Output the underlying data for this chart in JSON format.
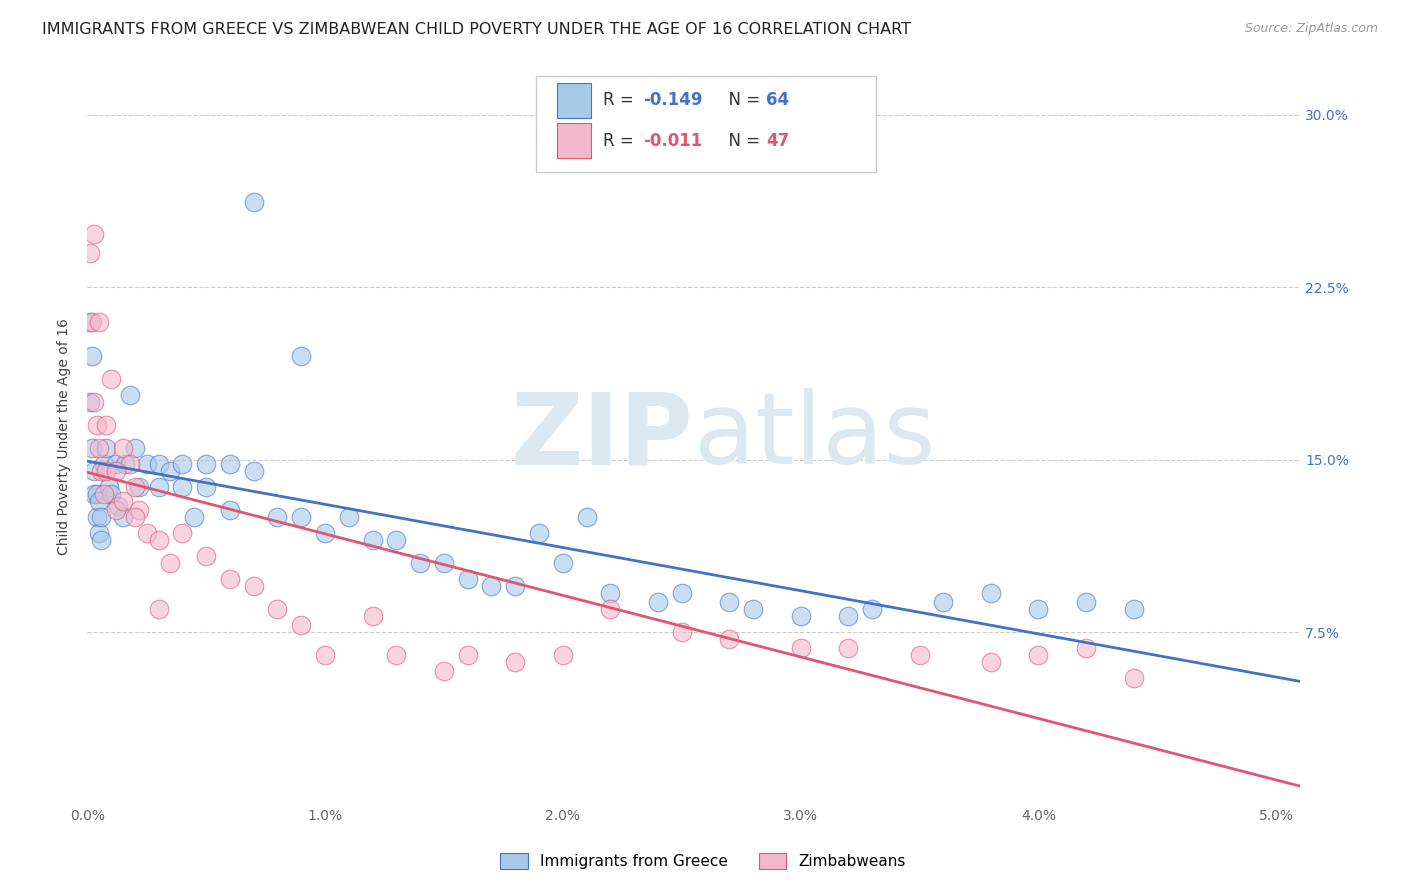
{
  "title": "IMMIGRANTS FROM GREECE VS ZIMBABWEAN CHILD POVERTY UNDER THE AGE OF 16 CORRELATION CHART",
  "source": "Source: ZipAtlas.com",
  "ylabel": "Child Poverty Under the Age of 16",
  "legend_entries": [
    {
      "label": "Immigrants from Greece",
      "color": "#a8c8e8",
      "R": "-0.149",
      "N": "64"
    },
    {
      "label": "Zimbabweans",
      "color": "#f4b8cc",
      "R": "-0.011",
      "N": "47"
    }
  ],
  "blue_scatter_x": [
    0.0001,
    0.0001,
    0.0002,
    0.0002,
    0.0003,
    0.0003,
    0.0004,
    0.0004,
    0.0005,
    0.0005,
    0.0006,
    0.0006,
    0.0007,
    0.0008,
    0.0009,
    0.001,
    0.0012,
    0.0013,
    0.0015,
    0.0016,
    0.0018,
    0.002,
    0.0022,
    0.0025,
    0.003,
    0.003,
    0.0035,
    0.004,
    0.004,
    0.0045,
    0.005,
    0.005,
    0.006,
    0.006,
    0.007,
    0.008,
    0.009,
    0.01,
    0.011,
    0.012,
    0.013,
    0.014,
    0.015,
    0.016,
    0.017,
    0.018,
    0.02,
    0.022,
    0.024,
    0.025,
    0.027,
    0.028,
    0.03,
    0.032,
    0.033,
    0.036,
    0.038,
    0.04,
    0.042,
    0.044,
    0.007,
    0.009,
    0.019,
    0.021
  ],
  "blue_scatter_y": [
    0.21,
    0.175,
    0.195,
    0.155,
    0.145,
    0.135,
    0.135,
    0.125,
    0.132,
    0.118,
    0.125,
    0.115,
    0.148,
    0.155,
    0.138,
    0.135,
    0.148,
    0.13,
    0.125,
    0.148,
    0.178,
    0.155,
    0.138,
    0.148,
    0.148,
    0.138,
    0.145,
    0.148,
    0.138,
    0.125,
    0.148,
    0.138,
    0.148,
    0.128,
    0.145,
    0.125,
    0.125,
    0.118,
    0.125,
    0.115,
    0.115,
    0.105,
    0.105,
    0.098,
    0.095,
    0.095,
    0.105,
    0.092,
    0.088,
    0.092,
    0.088,
    0.085,
    0.082,
    0.082,
    0.085,
    0.088,
    0.092,
    0.085,
    0.088,
    0.085,
    0.262,
    0.195,
    0.118,
    0.125
  ],
  "pink_scatter_x": [
    0.0001,
    0.0002,
    0.0003,
    0.0004,
    0.0005,
    0.0006,
    0.0007,
    0.0008,
    0.001,
    0.0012,
    0.0015,
    0.0018,
    0.002,
    0.0022,
    0.0025,
    0.003,
    0.0035,
    0.004,
    0.005,
    0.006,
    0.007,
    0.008,
    0.009,
    0.01,
    0.012,
    0.013,
    0.015,
    0.016,
    0.018,
    0.02,
    0.022,
    0.025,
    0.027,
    0.03,
    0.032,
    0.035,
    0.038,
    0.04,
    0.042,
    0.044,
    0.0003,
    0.0005,
    0.0008,
    0.0012,
    0.0015,
    0.002,
    0.003
  ],
  "pink_scatter_y": [
    0.24,
    0.21,
    0.175,
    0.165,
    0.155,
    0.145,
    0.135,
    0.145,
    0.185,
    0.128,
    0.155,
    0.148,
    0.138,
    0.128,
    0.118,
    0.115,
    0.105,
    0.118,
    0.108,
    0.098,
    0.095,
    0.085,
    0.078,
    0.065,
    0.082,
    0.065,
    0.058,
    0.065,
    0.062,
    0.065,
    0.085,
    0.075,
    0.072,
    0.068,
    0.068,
    0.065,
    0.062,
    0.065,
    0.068,
    0.055,
    0.248,
    0.21,
    0.165,
    0.145,
    0.132,
    0.125,
    0.085
  ],
  "blue_line_color": "#4472c4",
  "pink_line_color": "#e05570",
  "scatter_blue_color": "#a8c8e8",
  "scatter_pink_color": "#f4b8cc",
  "scatter_alpha": 0.6,
  "scatter_size": 180,
  "watermark_zip": "ZIP",
  "watermark_atlas": "atlas",
  "watermark_color": "#dce8f0",
  "ylim": [
    0.0,
    0.32
  ],
  "xlim": [
    0.0,
    0.051
  ],
  "yticks": [
    0.075,
    0.15,
    0.225,
    0.3
  ],
  "ytick_labels": [
    "7.5%",
    "15.0%",
    "22.5%",
    "30.0%"
  ],
  "grid_color": "#cccccc",
  "grid_style": "--",
  "background_color": "#ffffff",
  "title_fontsize": 11.5,
  "source_fontsize": 9,
  "ylabel_fontsize": 10,
  "tick_fontsize": 10,
  "legend_fontsize": 12
}
